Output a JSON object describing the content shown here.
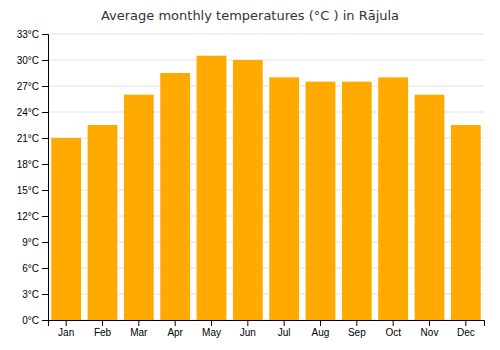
{
  "chart_data": {
    "type": "bar",
    "title": "Average monthly temperatures (°C ) in Rājula",
    "categories": [
      "Jan",
      "Feb",
      "Mar",
      "Apr",
      "May",
      "Jun",
      "Jul",
      "Aug",
      "Sep",
      "Oct",
      "Nov",
      "Dec"
    ],
    "values": [
      21,
      22.5,
      26,
      28.5,
      30.5,
      30,
      28,
      27.5,
      27.5,
      28,
      26,
      22.5
    ],
    "color": "#FFAA00",
    "ylim": [
      0,
      33
    ],
    "yticks": [
      {
        "value": 0,
        "label": "0°C"
      },
      {
        "value": 3,
        "label": "3°C"
      },
      {
        "value": 6,
        "label": "6°C"
      },
      {
        "value": 9,
        "label": "9°C"
      },
      {
        "value": 12,
        "label": "12°C"
      },
      {
        "value": 15,
        "label": "15°C"
      },
      {
        "value": 18,
        "label": "18°C"
      },
      {
        "value": 21,
        "label": "21°C"
      },
      {
        "value": 24,
        "label": "24°C"
      },
      {
        "value": 27,
        "label": "27°C"
      },
      {
        "value": 30,
        "label": "30°C"
      },
      {
        "value": 33,
        "label": "33°C"
      }
    ],
    "grid": true
  }
}
